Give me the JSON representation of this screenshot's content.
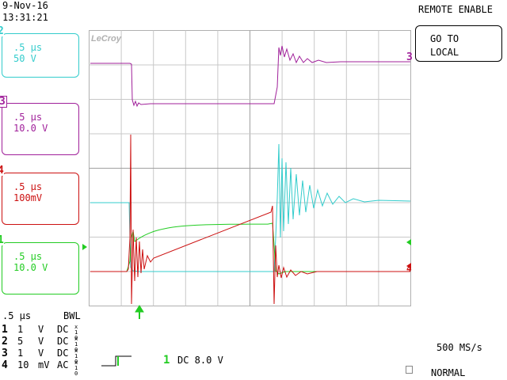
{
  "header": {
    "date": "9-Nov-16",
    "time": "13:31:21",
    "remote": "REMOTE ENABLE"
  },
  "goto_button": {
    "line1": "GO TO",
    "line2": "LOCAL"
  },
  "logo": "LeCroy",
  "channels": [
    {
      "num": "2",
      "timebase": ".5 µs",
      "scale": "50 V",
      "color": "#33cccc"
    },
    {
      "num": "3",
      "timebase": ".5 µs",
      "scale": "10.0 V",
      "color": "#a0209a"
    },
    {
      "num": "4",
      "timebase": ".5 µs",
      "scale": "100mV",
      "color": "#cc1010"
    },
    {
      "num": "1",
      "timebase": ".5 µs",
      "scale": "10.0 V",
      "color": "#22cc22"
    }
  ],
  "trace_markers": {
    "ch3": "3",
    "ch4": "4",
    "ch1": "1"
  },
  "summary": {
    "timebase": ".5 µs",
    "bwl": "BWL",
    "rows": [
      {
        "ch": "1",
        "volts": "1",
        "unit": "V",
        "coupling": "DC",
        "probe": "x10"
      },
      {
        "ch": "2",
        "volts": "5",
        "unit": "V",
        "coupling": "DC",
        "probe": "x10"
      },
      {
        "ch": "3",
        "volts": "1",
        "unit": "V",
        "coupling": "DC",
        "probe": "x10"
      },
      {
        "ch": "4",
        "volts": "10",
        "unit": "mV",
        "coupling": "AC",
        "probe": "x10"
      }
    ]
  },
  "trigger": {
    "channel": "1",
    "setting": "DC 8.0 V"
  },
  "acquisition": {
    "sample_rate": "500 MS/s",
    "mode": "NORMAL"
  }
}
